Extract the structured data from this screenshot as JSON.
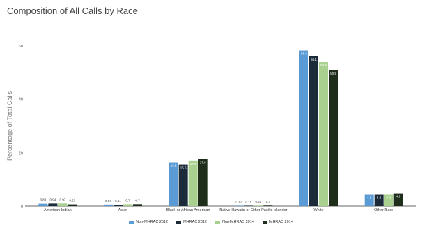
{
  "chart_data": {
    "type": "bar",
    "title": "Composition of All Calls by Race",
    "xlabel": "",
    "ylabel": "Percentage of Total Calls",
    "ylim": [
      0,
      60
    ],
    "yticks": [
      "0",
      "20",
      "40",
      "60"
    ],
    "grid": false,
    "legend_position": "bottom",
    "categories": [
      "American Indian",
      "Asian",
      "Black or African American",
      "Native Hawaiin or Other Pacific Islander",
      "White",
      "Other Race"
    ],
    "series": [
      {
        "name": "Non-MHRAC 2012",
        "color": "#5b9bd5",
        "values": [
          0.88,
          0.57,
          16.3,
          0.17,
          58.3,
          4.3
        ],
        "labels": [
          "0.88",
          "0.57",
          "16.3",
          "0.17",
          "58.3",
          "4.3"
        ]
      },
      {
        "name": "MHRAC 2012",
        "color": "#1c2b3a",
        "values": [
          0.94,
          0.51,
          15.5,
          0.15,
          56.1,
          4.3
        ],
        "labels": [
          "0.94",
          "0.51",
          "15.5",
          "0.15",
          "56.1",
          "4.3"
        ]
      },
      {
        "name": "Non-MHRAC 2014",
        "color": "#a9d08e",
        "values": [
          0.97,
          0.7,
          17.0,
          0.21,
          54.0,
          4.3
        ],
        "labels": [
          "0.97",
          "0.7",
          "17.0",
          "0.21",
          "54.0",
          "4.3"
        ]
      },
      {
        "name": "MHRAC 2014",
        "color": "#1e2e1a",
        "values": [
          0.63,
          0.7,
          17.6,
          0.2,
          50.9,
          4.8
        ],
        "labels": [
          "0.63",
          "0.7",
          "17.6",
          "0.2",
          "50.9",
          "4.8"
        ]
      }
    ]
  }
}
